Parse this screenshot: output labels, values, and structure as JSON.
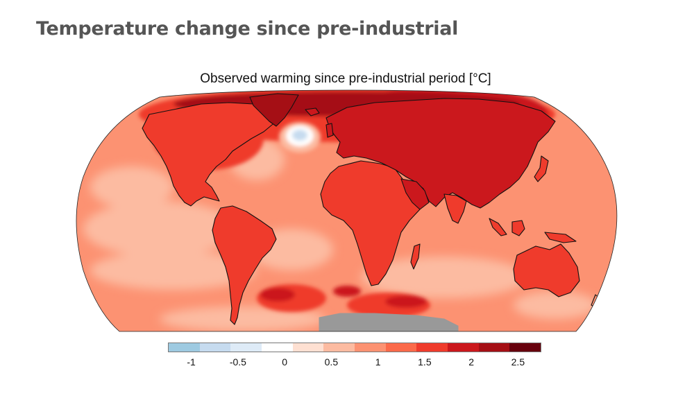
{
  "page": {
    "title": "Temperature change since pre-industrial"
  },
  "map": {
    "title": "Observed warming since pre-industrial period [°C]",
    "projection": "Robinson",
    "no_data_color": "#999999",
    "colorbar": {
      "min": -1.25,
      "max": 2.75,
      "step": 0.333,
      "colors": [
        "#9ecae1",
        "#c6dbef",
        "#deebf7",
        "#ffffff",
        "#fee0d2",
        "#fcbba1",
        "#fc9272",
        "#fb6a4a",
        "#ef3b2c",
        "#cb181d",
        "#a50f15",
        "#67000d"
      ],
      "ticks": [
        {
          "value": -1,
          "label": "-1"
        },
        {
          "value": -0.5,
          "label": "-0.5"
        },
        {
          "value": 0,
          "label": "0"
        },
        {
          "value": 0.5,
          "label": "0.5"
        },
        {
          "value": 1,
          "label": "1"
        },
        {
          "value": 1.5,
          "label": "1.5"
        },
        {
          "value": 2,
          "label": "2"
        },
        {
          "value": 2.5,
          "label": "2.5"
        }
      ]
    }
  }
}
